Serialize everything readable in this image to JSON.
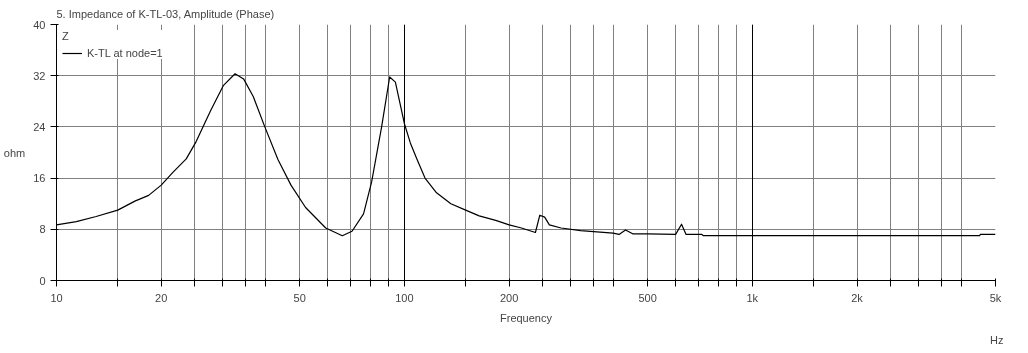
{
  "chart_data": {
    "type": "line",
    "title": "5. Impedance of K-TL-03, Amplitude (Phase)",
    "xlabel": "Frequency",
    "ylabel": "ohm",
    "legend_title": "Z",
    "annotations": [
      "Hz"
    ],
    "log": "x",
    "grid": true,
    "legend": "top left",
    "marker": "none",
    "line_style": "solid",
    "xlim": [
      10,
      5000
    ],
    "ylim": [
      0,
      40
    ],
    "xticks": [
      10,
      {
        "value": 15,
        "label": null
      },
      20,
      {
        "value": 25,
        "label": null
      },
      {
        "value": 30,
        "label": null
      },
      {
        "value": 35,
        "label": null
      },
      {
        "value": 40,
        "label": null
      },
      50,
      {
        "value": 60,
        "label": null
      },
      {
        "value": 70,
        "label": null
      },
      {
        "value": 80,
        "label": null
      },
      {
        "value": 90,
        "label": null
      },
      100,
      {
        "value": 150,
        "label": null
      },
      200,
      {
        "value": 250,
        "label": null
      },
      {
        "value": 300,
        "label": null
      },
      {
        "value": 350,
        "label": null
      },
      {
        "value": 400,
        "label": null
      },
      500,
      {
        "value": 600,
        "label": null
      },
      {
        "value": 700,
        "label": null
      },
      {
        "value": 800,
        "label": null
      },
      {
        "value": 900,
        "label": null
      },
      {
        "value": 1000,
        "label": "1k"
      },
      {
        "value": 1500,
        "label": null
      },
      {
        "value": 2000,
        "label": "2k"
      },
      {
        "value": 2500,
        "label": null
      },
      {
        "value": 3000,
        "label": null
      },
      {
        "value": 3500,
        "label": null
      },
      {
        "value": 4000,
        "label": null
      },
      {
        "value": 5000,
        "label": "5k"
      }
    ],
    "yticks": [
      0,
      8,
      16,
      24,
      32,
      40
    ],
    "series": [
      {
        "name": "K-TL at node=1",
        "color": "#000000",
        "x": [
          10,
          11.4,
          13,
          15,
          16.8,
          18.4,
          20,
          21.6,
          23.6,
          25.2,
          27.7,
          30.2,
          32.6,
          34.5,
          36.8,
          39.7,
          43.3,
          47.2,
          52,
          59.4,
          66.3,
          70.7,
          76.3,
          80.5,
          86,
          90.7,
          94.2,
          100,
          104,
          108.6,
          114.6,
          123.7,
          136,
          150,
          164,
          183,
          200,
          217,
          238,
          245,
          253,
          261,
          282,
          321,
          398,
          414,
          432,
          453,
          501,
          602,
          626,
          645,
          716,
          724,
          1000,
          2000,
          4500,
          4520,
          5000
        ],
        "values": [
          8.7,
          9.2,
          10,
          11,
          12.4,
          13.3,
          14.9,
          16.9,
          19,
          21.7,
          26.5,
          30.5,
          32.3,
          31.5,
          28.7,
          24,
          18.9,
          14.9,
          11.4,
          8.2,
          7,
          7.7,
          10.4,
          15.4,
          24,
          31.8,
          31,
          24.5,
          21.5,
          19,
          16,
          13.7,
          12,
          11,
          10.1,
          9.4,
          8.7,
          8.2,
          7.5,
          10.2,
          9.9,
          8.7,
          8.2,
          7.8,
          7.4,
          7.2,
          7.9,
          7.3,
          7.3,
          7.2,
          8.8,
          7.2,
          7.2,
          7,
          7,
          7,
          7,
          7.2,
          7.2
        ]
      }
    ]
  }
}
